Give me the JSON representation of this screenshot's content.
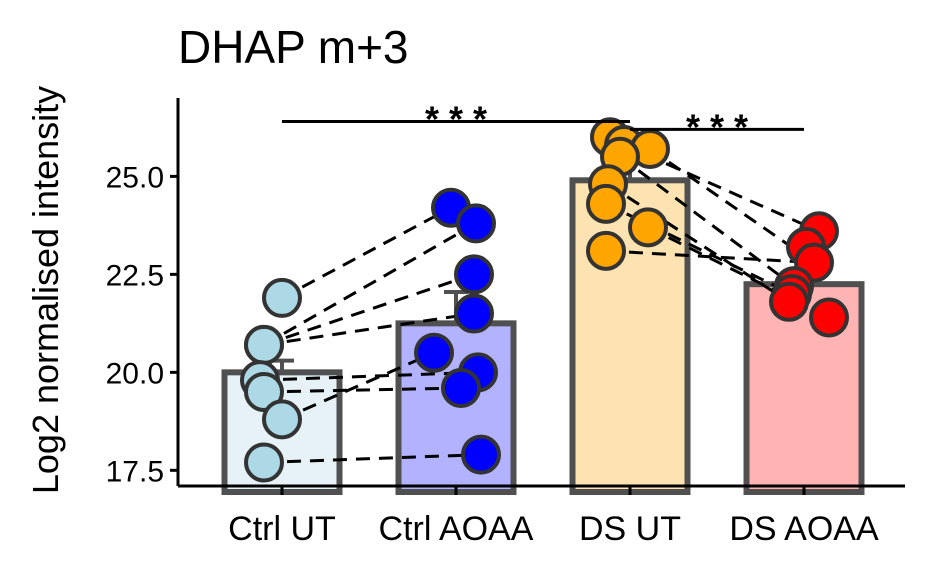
{
  "chart_data": {
    "type": "bar",
    "title": "DHAP m+3",
    "xlabel": "",
    "ylabel": "Log2 normalised intensity",
    "ylim": [
      17.1,
      27.0
    ],
    "yticks": [
      "17.5",
      "20.0",
      "22.5",
      "25.0"
    ],
    "categories": [
      "Ctrl UT",
      "Ctrl AOAA",
      "DS UT",
      "DS AOAA"
    ],
    "means": [
      20.0,
      21.25,
      24.9,
      22.25
    ],
    "errors": [
      0.3,
      0.8,
      1.05,
      0.9
    ],
    "bar_fill": [
      "#e6f2f7",
      "#b2b2ff",
      "#fde3b1",
      "#ffb3b3"
    ],
    "point_fill": [
      "#add8e6",
      "#0000ff",
      "#ffa500",
      "#ff0000"
    ],
    "points": [
      [
        21.9,
        20.7,
        20.7,
        19.8,
        19.5,
        18.8,
        17.7
      ],
      [
        24.2,
        23.8,
        22.5,
        21.5,
        20.0,
        20.5,
        19.6,
        17.9
      ],
      [
        26.0,
        25.8,
        25.7,
        25.5,
        24.8,
        24.3,
        23.7,
        23.1
      ],
      [
        23.6,
        23.2,
        22.8,
        22.2,
        22.0,
        21.8,
        21.4
      ]
    ],
    "pairs": [
      [
        [
          1,
          21.9
        ],
        [
          2,
          24.2
        ]
      ],
      [
        [
          1,
          20.7
        ],
        [
          2,
          23.8
        ]
      ],
      [
        [
          1,
          20.7
        ],
        [
          2,
          22.5
        ]
      ],
      [
        [
          1,
          20.7
        ],
        [
          2,
          21.5
        ]
      ],
      [
        [
          1,
          19.8
        ],
        [
          2,
          20.0
        ]
      ],
      [
        [
          1,
          19.5
        ],
        [
          2,
          19.6
        ]
      ],
      [
        [
          1,
          18.8
        ],
        [
          2,
          20.5
        ]
      ],
      [
        [
          1,
          17.7
        ],
        [
          2,
          17.9
        ]
      ],
      [
        [
          3,
          25.8
        ],
        [
          4,
          23.6
        ]
      ],
      [
        [
          3,
          25.7
        ],
        [
          4,
          22.8
        ]
      ],
      [
        [
          3,
          25.5
        ],
        [
          4,
          22.2
        ]
      ],
      [
        [
          3,
          24.8
        ],
        [
          4,
          21.8
        ]
      ],
      [
        [
          3,
          24.3
        ],
        [
          4,
          22.0
        ]
      ],
      [
        [
          3,
          23.7
        ],
        [
          4,
          21.4
        ]
      ],
      [
        [
          3,
          23.1
        ],
        [
          4,
          22.8
        ]
      ]
    ],
    "significance": [
      {
        "from": "Ctrl UT",
        "to": "DS UT",
        "label": "* * *",
        "y": 26.4
      },
      {
        "from": "DS UT",
        "to": "DS AOAA",
        "label": "* * *",
        "y": 26.2
      }
    ]
  }
}
